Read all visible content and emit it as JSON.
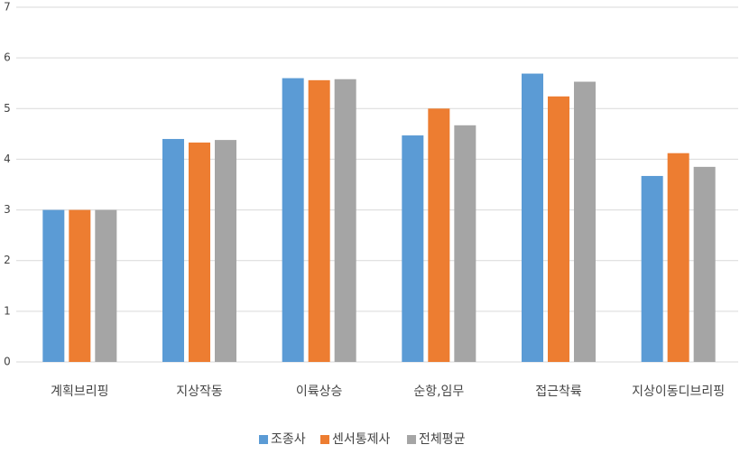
{
  "chart_data": {
    "type": "bar",
    "categories": [
      "계획브리핑",
      "지상작동",
      "이륙상승",
      "순항,임무",
      "접근착륙",
      "지상이동디브리핑"
    ],
    "series": [
      {
        "name": "조종사",
        "color": "#5b9bd5",
        "values": [
          3.0,
          4.4,
          5.6,
          4.47,
          5.69,
          3.67
        ]
      },
      {
        "name": "센서통제사",
        "color": "#ed7d31",
        "values": [
          3.0,
          4.33,
          5.56,
          5.0,
          5.24,
          4.12
        ]
      },
      {
        "name": "전체평균",
        "color": "#a5a5a5",
        "values": [
          3.0,
          4.38,
          5.58,
          4.67,
          5.53,
          3.85
        ]
      }
    ],
    "ylim": [
      0,
      7
    ],
    "yticks": [
      0,
      1,
      2,
      3,
      4,
      5,
      6,
      7
    ],
    "grid": true,
    "legend": "bottom"
  }
}
